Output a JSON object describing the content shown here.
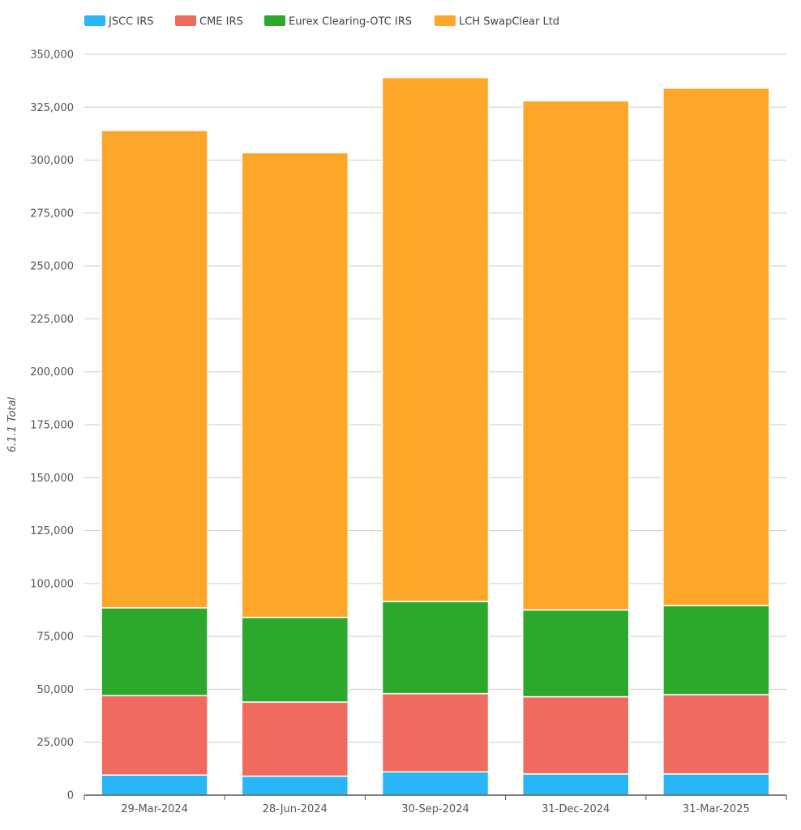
{
  "chart_data": {
    "type": "bar",
    "stacked": true,
    "ylabel": "6.1.1 Total",
    "ylim": [
      0,
      350000
    ],
    "yticks": [
      0,
      25000,
      50000,
      75000,
      100000,
      125000,
      150000,
      175000,
      200000,
      225000,
      250000,
      275000,
      300000,
      325000,
      350000
    ],
    "ytick_labels": [
      "0",
      "25,000",
      "50,000",
      "75,000",
      "100,000",
      "125,000",
      "150,000",
      "175,000",
      "200,000",
      "225,000",
      "250,000",
      "275,000",
      "300,000",
      "325,000",
      "350,000"
    ],
    "grid": true,
    "legend_position": "top",
    "categories": [
      "29-Mar-2024",
      "28-Jun-2024",
      "30-Sep-2024",
      "31-Dec-2024",
      "31-Mar-2025"
    ],
    "series": [
      {
        "name": "JSCC IRS",
        "color": "#29b6f6",
        "values": [
          9500,
          9000,
          11000,
          10000,
          10000
        ]
      },
      {
        "name": "CME IRS",
        "color": "#f06b5f",
        "values": [
          37500,
          35000,
          37000,
          36500,
          37500
        ]
      },
      {
        "name": "Eurex Clearing-OTC IRS",
        "color": "#2ca82c",
        "values": [
          41500,
          40000,
          43500,
          41000,
          42000
        ]
      },
      {
        "name": "LCH SwapClear Ltd",
        "color": "#fca62a",
        "values": [
          225500,
          219500,
          247500,
          240500,
          244500
        ]
      }
    ]
  }
}
